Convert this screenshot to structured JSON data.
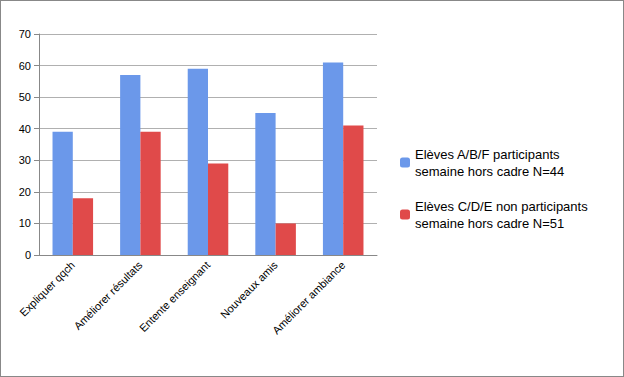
{
  "chart_data": {
    "type": "bar",
    "categories": [
      "Expliquer qqch",
      "Améliorer résultats",
      "Entente enseignant",
      "Nouveaux amis",
      "Améliorer ambiance"
    ],
    "series": [
      {
        "name": "Elèves A/B/F participants semaine hors cadre N=44",
        "color": "#6b98ea",
        "values": [
          39,
          57,
          59,
          45,
          61
        ]
      },
      {
        "name": "Elèves C/D/E non participants semaine hors cadre N=51",
        "color": "#e04a4a",
        "values": [
          18,
          39,
          29,
          10,
          41
        ]
      }
    ],
    "ylim": [
      0,
      70
    ],
    "yticks": [
      0,
      10,
      20,
      30,
      40,
      50,
      60,
      70
    ],
    "grid": true,
    "legend": "right"
  }
}
